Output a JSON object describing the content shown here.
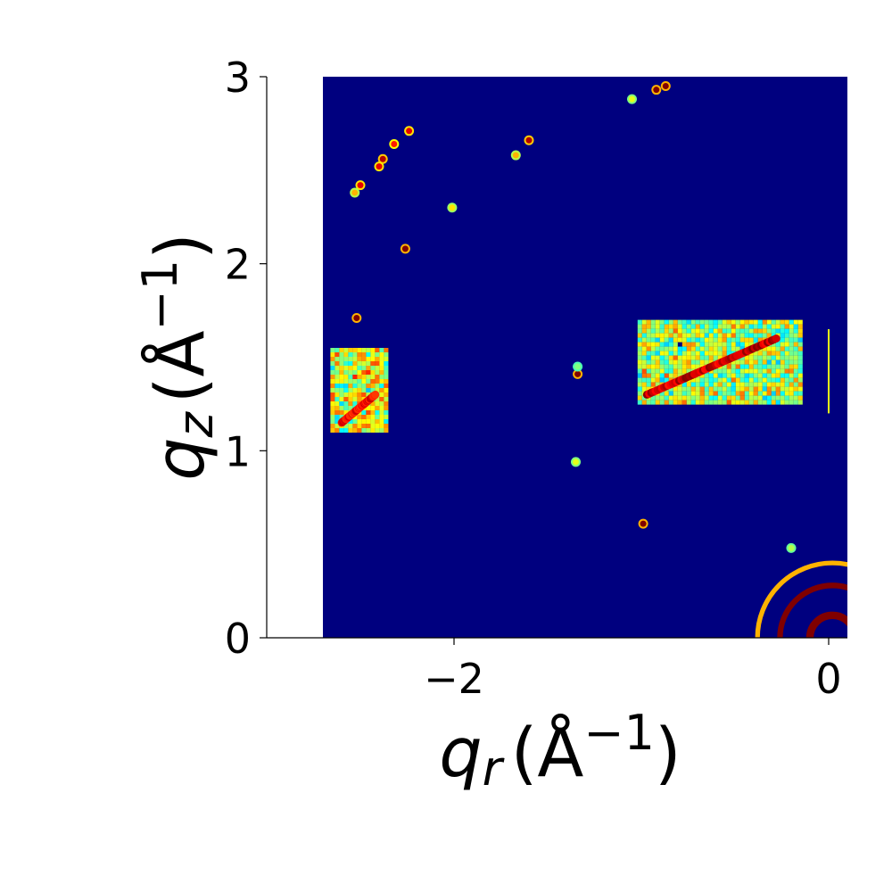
{
  "chart_data": {
    "type": "heatmap",
    "colormap": "jet",
    "background_color": "#00007f",
    "xlim": [
      -3.0,
      0.1
    ],
    "ylim": [
      0,
      3
    ],
    "data_extent_x": [
      -2.7,
      0.1
    ],
    "x_ticks": [
      {
        "value": -2,
        "label": "−2"
      },
      {
        "value": 0,
        "label": "0"
      }
    ],
    "y_ticks": [
      {
        "value": 0,
        "label": "0"
      },
      {
        "value": 1,
        "label": "1"
      },
      {
        "value": 2,
        "label": "2"
      },
      {
        "value": 3,
        "label": "3"
      }
    ],
    "xlabel": {
      "var": "q",
      "sub": "r",
      "unit_open": "(Å",
      "unit_sup": "−1",
      "unit_close": ")"
    },
    "ylabel": {
      "var": "q",
      "sub": "z",
      "unit_open": "(Å",
      "unit_sup": "−1",
      "unit_close": ")"
    },
    "grid": false,
    "regions": [
      {
        "kind": "patch",
        "x": [
          -2.66,
          -2.36
        ],
        "y": [
          1.1,
          1.55
        ],
        "intensity": 0.75
      },
      {
        "kind": "patch",
        "x": [
          -1.02,
          -0.15
        ],
        "y": [
          1.25,
          1.7
        ],
        "intensity": 0.7
      },
      {
        "kind": "streak",
        "from": [
          -0.97,
          1.3
        ],
        "to": [
          -0.28,
          1.6
        ],
        "intensity": 1.0
      },
      {
        "kind": "streak",
        "from": [
          -2.6,
          1.15
        ],
        "to": [
          -2.42,
          1.3
        ],
        "intensity": 0.95
      },
      {
        "kind": "spot",
        "x": -0.92,
        "y": 2.93,
        "intensity": 1.0
      },
      {
        "kind": "spot",
        "x": -0.87,
        "y": 2.95,
        "intensity": 1.0
      },
      {
        "kind": "spot",
        "x": -2.24,
        "y": 2.71,
        "intensity": 0.9
      },
      {
        "kind": "spot",
        "x": -2.32,
        "y": 2.64,
        "intensity": 0.85
      },
      {
        "kind": "spot",
        "x": -2.38,
        "y": 2.56,
        "intensity": 0.95
      },
      {
        "kind": "spot",
        "x": -2.4,
        "y": 2.52,
        "intensity": 0.9
      },
      {
        "kind": "spot",
        "x": -2.5,
        "y": 2.42,
        "intensity": 0.9
      },
      {
        "kind": "spot",
        "x": -2.53,
        "y": 2.38,
        "intensity": 0.7
      },
      {
        "kind": "spot",
        "x": -1.6,
        "y": 2.66,
        "intensity": 0.95
      },
      {
        "kind": "spot",
        "x": -1.67,
        "y": 2.58,
        "intensity": 0.7
      },
      {
        "kind": "spot",
        "x": -2.01,
        "y": 2.3,
        "intensity": 0.65
      },
      {
        "kind": "spot",
        "x": -2.26,
        "y": 2.08,
        "intensity": 1.0
      },
      {
        "kind": "spot",
        "x": -2.52,
        "y": 1.71,
        "intensity": 1.0
      },
      {
        "kind": "spot",
        "x": -1.34,
        "y": 1.41,
        "intensity": 1.0
      },
      {
        "kind": "spot",
        "x": -1.34,
        "y": 1.45,
        "intensity": 0.5
      },
      {
        "kind": "spot",
        "x": -0.99,
        "y": 0.61,
        "intensity": 1.0
      },
      {
        "kind": "spot",
        "x": -1.35,
        "y": 0.94,
        "intensity": 0.6
      },
      {
        "kind": "spot",
        "x": -1.05,
        "y": 2.88,
        "intensity": 0.6
      },
      {
        "kind": "spot",
        "x": -0.2,
        "y": 0.48,
        "intensity": 0.55
      },
      {
        "kind": "arc",
        "cx": 0.02,
        "cy": 0.0,
        "r": 0.4,
        "thickness": 0.025,
        "intensity": 0.7
      },
      {
        "kind": "arc",
        "cx": 0.02,
        "cy": 0.0,
        "r": 0.28,
        "thickness": 0.03,
        "intensity": 1.0
      },
      {
        "kind": "arc",
        "cx": 0.02,
        "cy": 0.0,
        "r": 0.12,
        "thickness": 0.04,
        "intensity": 1.0
      },
      {
        "kind": "line",
        "x": 0.0,
        "y": [
          1.2,
          1.65
        ],
        "intensity": 0.6
      }
    ]
  }
}
